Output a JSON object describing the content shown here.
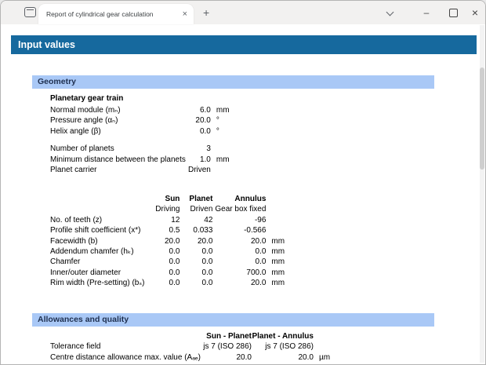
{
  "window": {
    "tab": {
      "title": "Report of cylindrical gear calculation",
      "close_glyph": "×"
    },
    "new_tab_glyph": "+",
    "controls": {
      "minimize_glyph": "–",
      "close_glyph": "×"
    }
  },
  "page": {
    "title": "Input values",
    "geometry": {
      "title": "Geometry",
      "subheading": "Planetary gear train",
      "kv_rows": [
        [
          "Normal module (mₙ)",
          "6.0",
          "mm"
        ],
        [
          "Pressure angle (αₙ)",
          "20.0",
          "°"
        ],
        [
          "Helix angle (β)",
          "0.0",
          "°"
        ],
        [
          "",
          "",
          ""
        ],
        [
          "Number of planets",
          "3",
          ""
        ],
        [
          "Minimum distance between the planets",
          "1.0",
          "mm"
        ],
        [
          "Planet carrier",
          "Driven",
          ""
        ]
      ],
      "gear_table": {
        "col_headers": [
          "Sun",
          "Planet",
          "Annulus"
        ],
        "col_subheaders": [
          "Driving",
          "Driven",
          "Gear box fixed"
        ],
        "rows": [
          [
            "No. of teeth (z)",
            "12",
            "42",
            "-96",
            ""
          ],
          [
            "Profile shift coefficient (x*)",
            "0.5",
            "0.033",
            "-0.566",
            ""
          ],
          [
            "Facewidth (b)",
            "20.0",
            "20.0",
            "20.0",
            "mm"
          ],
          [
            "Addendum chamfer (hₖ)",
            "0.0",
            "0.0",
            "0.0",
            "mm"
          ],
          [
            "Chamfer",
            "0.0",
            "0.0",
            "0.0",
            "mm"
          ],
          [
            "Inner/outer diameter",
            "0.0",
            "0.0",
            "700.0",
            "mm"
          ],
          [
            "Rim width (Pre-setting) (bₛ)",
            "0.0",
            "0.0",
            "20.0",
            "mm"
          ]
        ]
      }
    },
    "allowances": {
      "title": "Allowances and quality",
      "col_headers": [
        "Sun - Planet",
        "Planet - Annulus"
      ],
      "rows": [
        [
          "Tolerance field",
          "js 7 (ISO 286)",
          "js 7 (ISO 286)",
          ""
        ],
        [
          "Centre distance allowance max. value (Aₐₑ)",
          "20.0",
          "20.0",
          "µm"
        ]
      ]
    }
  },
  "colors": {
    "main_header_bg": "#16699e",
    "section_bar_bg": "#a9c8f6",
    "section_text": "#1f3050"
  }
}
